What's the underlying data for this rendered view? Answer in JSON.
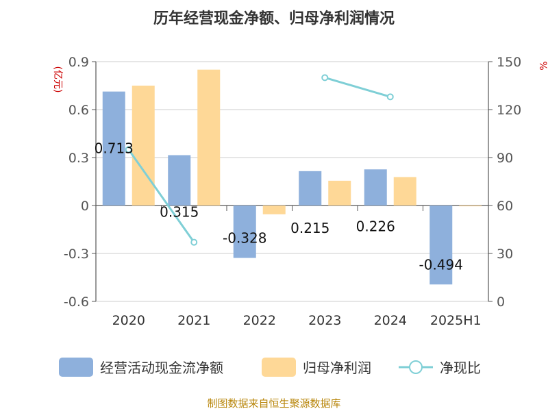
{
  "chart_data": {
    "type": "bar",
    "title": "历年经营现金净额、归母净利润情况",
    "categories": [
      "2020",
      "2021",
      "2022",
      "2023",
      "2024",
      "2025H1"
    ],
    "y_left": {
      "label": "(亿元)",
      "min": -0.6,
      "max": 0.9,
      "ticks": [
        0.9,
        0.6,
        0.3,
        0,
        -0.3,
        -0.6
      ],
      "tick_labels": [
        "0.9",
        "0.6",
        "0.3",
        "0",
        "-0.3",
        "-0.6"
      ]
    },
    "y_right": {
      "label": "%",
      "min": 0,
      "max": 150,
      "ticks": [
        150,
        120,
        90,
        60,
        30,
        0
      ],
      "tick_labels": [
        "150",
        "120",
        "90",
        "60",
        "30",
        "0"
      ]
    },
    "series": [
      {
        "name": "经营活动现金流净额",
        "type": "bar",
        "axis": "left",
        "color": "#8eb0dc",
        "values": [
          0.713,
          0.315,
          -0.328,
          0.215,
          0.226,
          -0.494
        ],
        "data_labels": [
          "0.713",
          "0.315",
          "-0.328",
          "0.215",
          "0.226",
          "-0.494"
        ]
      },
      {
        "name": "归母净利润",
        "type": "bar",
        "axis": "left",
        "color": "#fed897",
        "values": [
          0.75,
          0.85,
          -0.055,
          0.155,
          0.178,
          -0.005
        ]
      },
      {
        "name": "净现比",
        "type": "line",
        "axis": "right",
        "color": "#7fcfd6",
        "values": [
          95,
          37,
          null,
          140,
          128,
          null
        ]
      }
    ],
    "grid": true,
    "legend_position": "bottom"
  },
  "footer": "制图数据来自恒生聚源数据库"
}
